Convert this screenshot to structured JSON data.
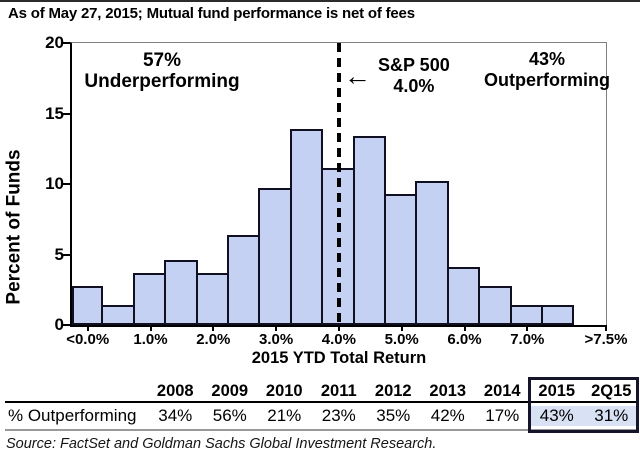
{
  "title": "As of May 27, 2015; Mutual fund performance is net of fees",
  "chart_data": {
    "type": "bar",
    "ylabel": "Percent of Funds",
    "xlabel": "2015 YTD Total Return",
    "ylim": [
      0,
      20
    ],
    "yticks": [
      0,
      5,
      10,
      15,
      20
    ],
    "x_tick_labels": [
      "<0.0%",
      "1.0%",
      "2.0%",
      "3.0%",
      "4.0%",
      "5.0%",
      "6.0%",
      "7.0%",
      ">7.5%"
    ],
    "bin_width_ticks": "two bars per labeled tick",
    "values": [
      2.8,
      1.4,
      3.7,
      4.6,
      3.7,
      6.4,
      9.7,
      13.9,
      11.1,
      13.4,
      9.3,
      10.2,
      4.1,
      2.8,
      1.4,
      1.4
    ],
    "grid": false,
    "bar_color": "#C5D1F2",
    "bar_border_color": "#101022",
    "reference_line": {
      "at_tick_label": "4.0%",
      "style": "dashed",
      "color": "#000000"
    },
    "annotations": {
      "left_pct": "57%",
      "left_label": "Underperforming",
      "arrow": "←",
      "sp_line1": "S&P 500",
      "sp_line2": "4.0%",
      "right_pct": "43%",
      "right_label": "Outperforming"
    }
  },
  "table": {
    "row_label": "% Outperforming",
    "columns": [
      "2008",
      "2009",
      "2010",
      "2011",
      "2012",
      "2013",
      "2014",
      "2015",
      "2Q15"
    ],
    "values": [
      "34%",
      "56%",
      "21%",
      "23%",
      "35%",
      "42%",
      "17%",
      "43%",
      "31%"
    ],
    "highlighted_columns": [
      "2015",
      "2Q15"
    ],
    "highlight_color": "#D9E2F4"
  },
  "source": "Source: FactSet and Goldman Sachs Global Investment Research."
}
